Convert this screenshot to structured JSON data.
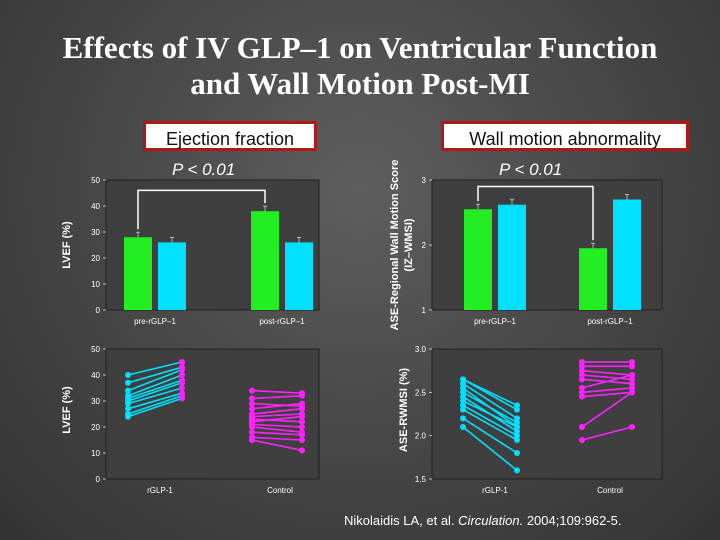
{
  "slide": {
    "title_line1": "Effects of IV GLP–1 on Ventricular Function",
    "title_line2": "and Wall Motion Post-MI",
    "banner_left": "Ejection fraction",
    "banner_right": "Wall motion abnormality",
    "pvalue_left": "P < 0.01",
    "pvalue_right": "P < 0.01",
    "citation_authors": "Nikolaidis LA, et al. ",
    "citation_journal": "Circulation.",
    "citation_detail": " 2004;109:962-5."
  },
  "colors": {
    "green": "#22ee22",
    "cyan": "#00e0ff",
    "magenta": "#ff22ff",
    "grid": "#000000"
  },
  "chart_data": [
    {
      "id": "top-left",
      "type": "bar",
      "ylabel": "LVEF (%)",
      "ylim": [
        0,
        50
      ],
      "yticks": [
        0,
        10,
        20,
        30,
        40,
        50
      ],
      "categories": [
        "pre-rGLP–1",
        "post-rGLP–1"
      ],
      "series": [
        {
          "name": "rGLP-1",
          "color": "green",
          "values": [
            28,
            38
          ]
        },
        {
          "name": "Control",
          "color": "cyan",
          "values": [
            26,
            26
          ]
        }
      ],
      "bracket": {
        "from": [
          0,
          0
        ],
        "to": [
          1,
          0
        ],
        "level": 46
      }
    },
    {
      "id": "top-right",
      "type": "bar",
      "ylabel": "ASE-Regional Wall Motion Score",
      "ylabel2": "(IZ–WMSI)",
      "ylim": [
        1,
        3
      ],
      "yticks": [
        1,
        2,
        3
      ],
      "categories": [
        "pre-rGLP–1",
        "post-rGLP–1"
      ],
      "series": [
        {
          "name": "rGLP-1",
          "color": "green",
          "values": [
            2.55,
            1.95
          ]
        },
        {
          "name": "Control",
          "color": "cyan",
          "values": [
            2.62,
            2.7
          ]
        }
      ],
      "bracket": {
        "from": [
          0,
          0
        ],
        "to": [
          1,
          0
        ],
        "level": 2.9
      }
    },
    {
      "id": "bottom-left",
      "type": "line",
      "ylabel": "LVEF (%)",
      "ylim": [
        0,
        50
      ],
      "yticks": [
        0,
        10,
        20,
        30,
        40,
        50
      ],
      "categories": [
        "rGLP-1",
        "Control"
      ],
      "groups": [
        {
          "name": "rGLP-1",
          "color": "cyan",
          "end_color": "magenta",
          "pairs": [
            [
              40,
              45
            ],
            [
              37,
              43
            ],
            [
              34,
              42
            ],
            [
              32,
              40
            ],
            [
              31,
              38
            ],
            [
              30,
              37
            ],
            [
              29,
              35
            ],
            [
              27,
              33
            ],
            [
              25,
              32
            ],
            [
              24,
              31
            ]
          ]
        },
        {
          "name": "Control",
          "color": "magenta",
          "end_color": "magenta",
          "pairs": [
            [
              34,
              33
            ],
            [
              31,
              32
            ],
            [
              29,
              28
            ],
            [
              27,
              29
            ],
            [
              25,
              27
            ],
            [
              24,
              25
            ],
            [
              23,
              22
            ],
            [
              22,
              24
            ],
            [
              21,
              20
            ],
            [
              20,
              18
            ],
            [
              18,
              17
            ],
            [
              16,
              15
            ],
            [
              15,
              11
            ]
          ]
        }
      ]
    },
    {
      "id": "bottom-right",
      "type": "line",
      "ylabel": "ASE-RWMSI (%)",
      "ylim": [
        1.5,
        3.0
      ],
      "yticks": [
        1.5,
        2.0,
        2.5,
        3.0
      ],
      "tick_labels": [
        "1.5",
        "2.0",
        "2.5",
        "3.0"
      ],
      "categories": [
        "rGLP-1",
        "Control"
      ],
      "groups": [
        {
          "name": "rGLP-1",
          "color": "cyan",
          "end_color": "cyan",
          "pairs": [
            [
              2.65,
              2.35
            ],
            [
              2.65,
              2.3
            ],
            [
              2.6,
              2.2
            ],
            [
              2.55,
              2.1
            ],
            [
              2.5,
              2.15
            ],
            [
              2.45,
              2.05
            ],
            [
              2.4,
              2.1
            ],
            [
              2.35,
              2.0
            ],
            [
              2.3,
              1.95
            ],
            [
              2.2,
              1.8
            ],
            [
              2.1,
              1.6
            ]
          ]
        },
        {
          "name": "Control",
          "color": "magenta",
          "end_color": "magenta",
          "pairs": [
            [
              2.85,
              2.85
            ],
            [
              2.8,
              2.8
            ],
            [
              2.75,
              2.7
            ],
            [
              2.7,
              2.65
            ],
            [
              2.65,
              2.6
            ],
            [
              2.55,
              2.7
            ],
            [
              2.5,
              2.55
            ],
            [
              2.45,
              2.5
            ],
            [
              2.1,
              2.5
            ],
            [
              1.95,
              2.1
            ]
          ]
        }
      ]
    }
  ]
}
